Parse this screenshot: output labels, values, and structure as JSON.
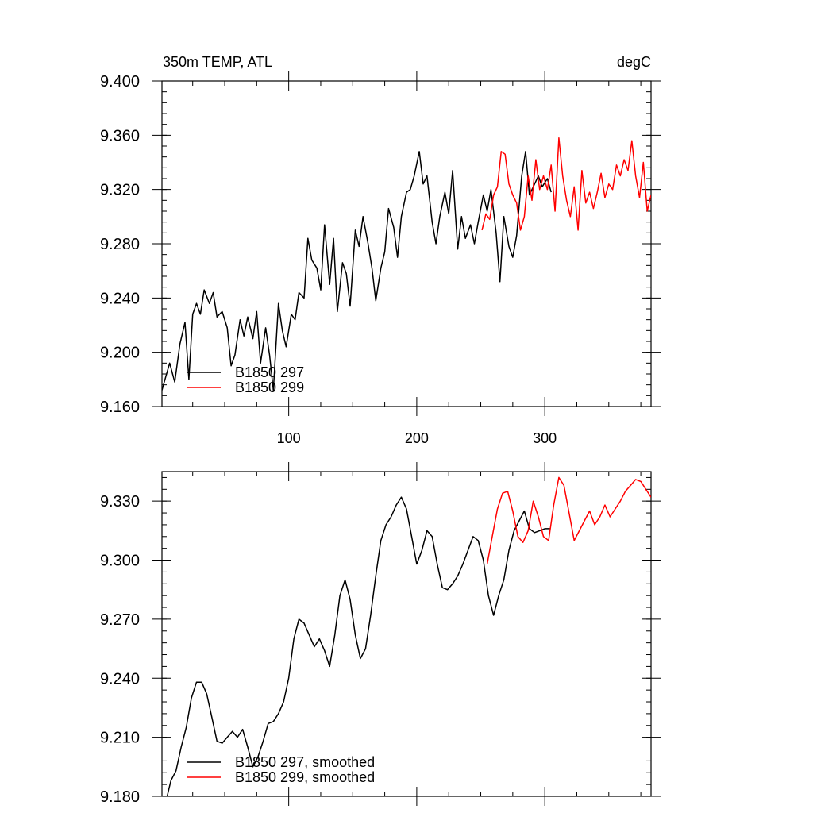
{
  "chart_data": [
    {
      "type": "line",
      "title_left": "350m TEMP, ATL",
      "title_right": "degC",
      "xlim": [
        1,
        383
      ],
      "ylim": [
        9.16,
        9.4
      ],
      "x_ticks": [
        100,
        200,
        300
      ],
      "x_tick_labels": [
        "100",
        "200",
        "300"
      ],
      "y_ticks": [
        9.16,
        9.2,
        9.24,
        9.28,
        9.32,
        9.36,
        9.4
      ],
      "y_tick_labels": [
        "9.160",
        "9.200",
        "9.240",
        "9.280",
        "9.320",
        "9.360",
        "9.400"
      ],
      "legend_position": "bottom-left",
      "series": [
        {
          "name": "B1850 297",
          "color": "#000000",
          "x": [
            1,
            4,
            7,
            11,
            15,
            19,
            22,
            25,
            28,
            31,
            34,
            38,
            41,
            44,
            48,
            52,
            55,
            58,
            62,
            65,
            68,
            72,
            75,
            78,
            82,
            85,
            88,
            92,
            95,
            98,
            102,
            105,
            108,
            112,
            115,
            118,
            122,
            125,
            128,
            132,
            135,
            138,
            142,
            145,
            148,
            152,
            155,
            158,
            162,
            165,
            168,
            172,
            175,
            178,
            182,
            185,
            188,
            192,
            195,
            198,
            202,
            205,
            208,
            212,
            215,
            218,
            222,
            225,
            228,
            232,
            235,
            238,
            242,
            245,
            248,
            252,
            255,
            258,
            262,
            265,
            268,
            272,
            275,
            278,
            282,
            285,
            288,
            292,
            295,
            298,
            302,
            305
          ],
          "y": [
            9.172,
            9.182,
            9.192,
            9.178,
            9.206,
            9.222,
            9.18,
            9.228,
            9.236,
            9.228,
            9.246,
            9.236,
            9.244,
            9.226,
            9.23,
            9.218,
            9.19,
            9.198,
            9.224,
            9.212,
            9.226,
            9.21,
            9.23,
            9.192,
            9.218,
            9.198,
            9.172,
            9.236,
            9.216,
            9.204,
            9.228,
            9.224,
            9.244,
            9.24,
            9.284,
            9.268,
            9.262,
            9.246,
            9.294,
            9.25,
            9.284,
            9.23,
            9.266,
            9.258,
            9.234,
            9.29,
            9.278,
            9.3,
            9.28,
            9.262,
            9.238,
            9.262,
            9.274,
            9.306,
            9.292,
            9.27,
            9.3,
            9.318,
            9.32,
            9.33,
            9.348,
            9.324,
            9.33,
            9.296,
            9.28,
            9.3,
            9.318,
            9.302,
            9.334,
            9.276,
            9.3,
            9.284,
            9.294,
            9.28,
            9.296,
            9.316,
            9.304,
            9.32,
            9.288,
            9.252,
            9.3,
            9.278,
            9.27,
            9.286,
            9.33,
            9.348,
            9.316,
            9.324,
            9.33,
            9.322,
            9.328,
            9.318
          ]
        },
        {
          "name": "B1850 299",
          "color": "#ff0000",
          "x": [
            251,
            254,
            257,
            260,
            263,
            266,
            269,
            272,
            275,
            278,
            281,
            284,
            287,
            290,
            293,
            296,
            299,
            302,
            305,
            308,
            311,
            314,
            317,
            320,
            323,
            326,
            329,
            332,
            335,
            338,
            341,
            344,
            347,
            350,
            353,
            356,
            359,
            362,
            365,
            368,
            371,
            374,
            377,
            380,
            383
          ],
          "y": [
            9.29,
            9.302,
            9.298,
            9.316,
            9.322,
            9.348,
            9.346,
            9.324,
            9.316,
            9.31,
            9.29,
            9.3,
            9.33,
            9.312,
            9.342,
            9.32,
            9.33,
            9.32,
            9.338,
            9.304,
            9.358,
            9.33,
            9.312,
            9.3,
            9.322,
            9.29,
            9.334,
            9.31,
            9.318,
            9.306,
            9.318,
            9.332,
            9.314,
            9.324,
            9.32,
            9.338,
            9.33,
            9.342,
            9.334,
            9.356,
            9.33,
            9.314,
            9.34,
            9.304,
            9.316
          ]
        }
      ]
    },
    {
      "type": "line",
      "xlim": [
        1,
        383
      ],
      "ylim": [
        9.18,
        9.345
      ],
      "x_ticks": [
        100,
        200,
        300
      ],
      "y_ticks": [
        9.18,
        9.21,
        9.24,
        9.27,
        9.3,
        9.33
      ],
      "y_tick_labels": [
        "9.180",
        "9.210",
        "9.240",
        "9.270",
        "9.300",
        "9.330"
      ],
      "legend_position": "bottom-left",
      "series": [
        {
          "name": "B1850 297, smoothed",
          "color": "#000000",
          "x": [
            5,
            8,
            12,
            16,
            20,
            24,
            28,
            32,
            36,
            40,
            44,
            48,
            52,
            56,
            60,
            64,
            68,
            72,
            76,
            80,
            84,
            88,
            92,
            96,
            100,
            104,
            108,
            112,
            116,
            120,
            124,
            128,
            132,
            136,
            140,
            144,
            148,
            152,
            156,
            160,
            164,
            168,
            172,
            176,
            180,
            184,
            188,
            192,
            196,
            200,
            204,
            208,
            212,
            216,
            220,
            224,
            228,
            232,
            236,
            240,
            244,
            248,
            252,
            256,
            260,
            264,
            268,
            272,
            276,
            280,
            284,
            288,
            292,
            296,
            300,
            304
          ],
          "y": [
            9.18,
            9.188,
            9.193,
            9.205,
            9.215,
            9.23,
            9.238,
            9.238,
            9.232,
            9.22,
            9.208,
            9.207,
            9.21,
            9.213,
            9.21,
            9.214,
            9.205,
            9.195,
            9.2,
            9.208,
            9.217,
            9.218,
            9.222,
            9.228,
            9.24,
            9.26,
            9.27,
            9.268,
            9.262,
            9.256,
            9.26,
            9.254,
            9.246,
            9.262,
            9.282,
            9.29,
            9.28,
            9.262,
            9.25,
            9.255,
            9.272,
            9.292,
            9.31,
            9.318,
            9.322,
            9.328,
            9.332,
            9.326,
            9.312,
            9.298,
            9.305,
            9.315,
            9.312,
            9.298,
            9.286,
            9.285,
            9.288,
            9.292,
            9.298,
            9.305,
            9.312,
            9.31,
            9.3,
            9.282,
            9.272,
            9.282,
            9.29,
            9.305,
            9.315,
            9.32,
            9.325,
            9.316,
            9.314,
            9.315,
            9.316,
            9.316
          ]
        },
        {
          "name": "B1850 299, smoothed",
          "color": "#ff0000",
          "x": [
            255,
            259,
            263,
            267,
            271,
            275,
            279,
            283,
            287,
            291,
            295,
            299,
            303,
            307,
            311,
            315,
            319,
            323,
            327,
            331,
            335,
            339,
            343,
            347,
            351,
            355,
            359,
            363,
            367,
            371,
            375,
            379,
            383
          ],
          "y": [
            9.298,
            9.312,
            9.326,
            9.334,
            9.335,
            9.325,
            9.312,
            9.309,
            9.315,
            9.33,
            9.322,
            9.312,
            9.31,
            9.328,
            9.342,
            9.338,
            9.324,
            9.31,
            9.315,
            9.32,
            9.325,
            9.318,
            9.322,
            9.328,
            9.322,
            9.326,
            9.33,
            9.335,
            9.338,
            9.341,
            9.34,
            9.336,
            9.332
          ]
        }
      ]
    }
  ]
}
